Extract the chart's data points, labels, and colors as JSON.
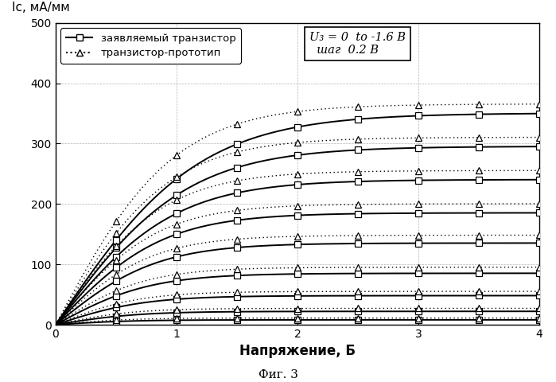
{
  "title_y": "Ic, мА/мм",
  "xlabel": "Напряжение, Б",
  "fig_label": "Фиг. 3",
  "annotation_line1": "U₃ = 0  to -1.6 B",
  "annotation_line2": "  шаг  0.2 B",
  "legend_solid": "заявляемый транзистор",
  "legend_dotted": "транзистор-прототип",
  "xlim": [
    0,
    4
  ],
  "ylim": [
    0,
    500
  ],
  "yticks": [
    0,
    100,
    200,
    300,
    400,
    500
  ],
  "xticks": [
    0,
    1,
    2,
    3,
    4
  ],
  "num_curves": 9,
  "Isat_solid": [
    350,
    295,
    240,
    185,
    135,
    85,
    48,
    22,
    8
  ],
  "Isat_dotted": [
    365,
    310,
    255,
    200,
    148,
    95,
    55,
    27,
    11
  ],
  "knee_solid": [
    1.2,
    1.1,
    1.0,
    0.9,
    0.85,
    0.8,
    0.75,
    0.7,
    0.65
  ],
  "knee_dotted": [
    1.0,
    0.95,
    0.9,
    0.85,
    0.8,
    0.75,
    0.7,
    0.65,
    0.6
  ],
  "slope_solid": [
    5.0,
    4.0,
    3.5,
    3.0,
    2.5,
    2.0,
    1.5,
    1.0,
    0.5
  ],
  "slope_dotted": [
    6.0,
    5.0,
    4.0,
    3.5,
    3.0,
    2.5,
    2.0,
    1.2,
    0.6
  ],
  "marker_x": [
    0.5,
    1.0,
    1.5,
    2.0,
    2.5,
    3.0,
    3.5,
    4.0
  ],
  "background": "#ffffff",
  "line_color": "#000000"
}
